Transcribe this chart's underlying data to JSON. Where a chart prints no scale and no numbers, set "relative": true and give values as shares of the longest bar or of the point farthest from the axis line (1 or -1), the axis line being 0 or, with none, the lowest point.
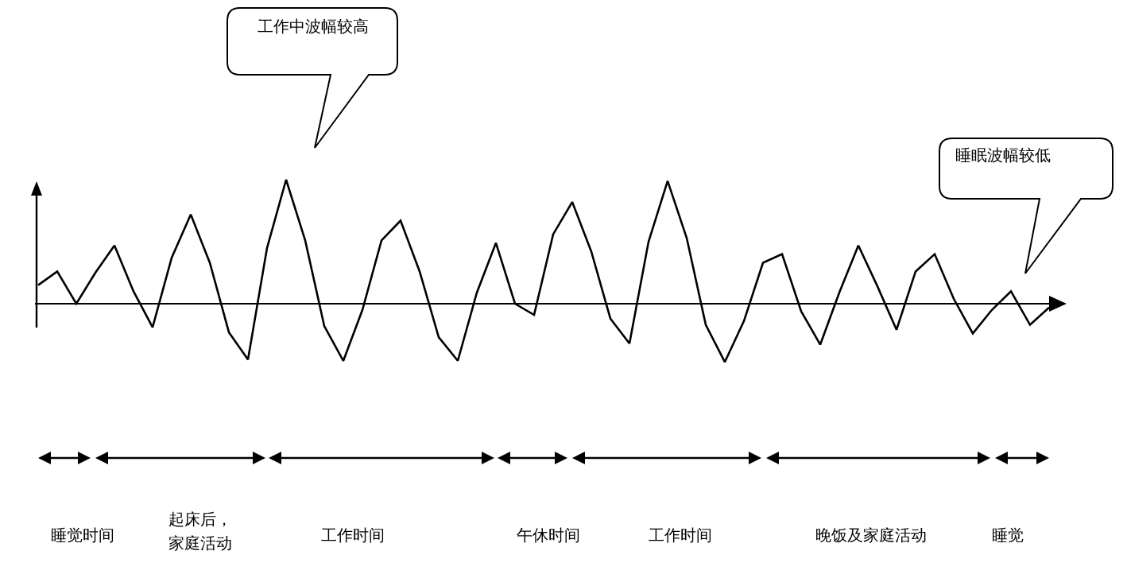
{
  "chart_data": {
    "type": "line",
    "relative": true,
    "color": "#000000",
    "categories": [
      null,
      null,
      null,
      null,
      null,
      null,
      null,
      null,
      null,
      null,
      null,
      null,
      null,
      null,
      null,
      null,
      null,
      null,
      null,
      null,
      null,
      null,
      null,
      null,
      null,
      null,
      null,
      null,
      null,
      null,
      null,
      null,
      null,
      null,
      null,
      null,
      null,
      null,
      null,
      null,
      null,
      null,
      null,
      null,
      null,
      null,
      null,
      null,
      null,
      null,
      null,
      null,
      null,
      null
    ],
    "values": [
      0.15,
      0.26,
      0,
      0.25,
      0.47,
      0.1,
      -0.19,
      0.37,
      0.72,
      0.33,
      -0.23,
      -0.45,
      0.45,
      1,
      0.51,
      -0.18,
      -0.46,
      -0.05,
      0.51,
      0.67,
      0.26,
      -0.27,
      -0.46,
      0.09,
      0.49,
      0,
      -0.09,
      0.56,
      0.82,
      0.42,
      -0.12,
      -0.32,
      0.5,
      0.99,
      0.53,
      -0.17,
      -0.47,
      -0.14,
      0.33,
      0.4,
      -0.06,
      -0.33,
      0.09,
      0.47,
      0.14,
      -0.21,
      0.26,
      0.4,
      0.04,
      -0.24,
      -0.05,
      0.1,
      -0.17,
      -0.03
    ],
    "annotations": [
      "工作中波幅较高",
      "睡眠波幅较低",
      "睡觉时间",
      "起床后，",
      "家庭活动",
      "工作时间",
      "午休时间",
      "工作时间",
      "晚饭及家庭活动",
      "睡觉"
    ]
  }
}
